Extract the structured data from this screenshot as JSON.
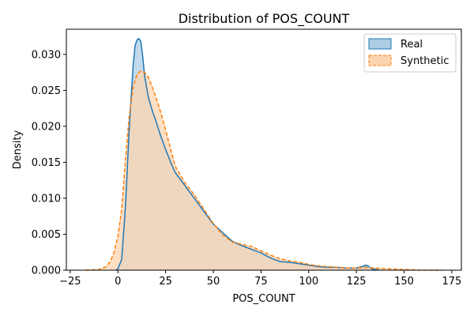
{
  "chart_data": {
    "type": "area",
    "title": "Distribution of POS_COUNT",
    "xlabel": "POS_COUNT",
    "ylabel": "Density",
    "xlim": [
      -27,
      180
    ],
    "ylim": [
      0,
      0.0335
    ],
    "xticks": [
      -25,
      0,
      25,
      50,
      75,
      100,
      125,
      150,
      175
    ],
    "xtick_labels": [
      "−25",
      "0",
      "25",
      "50",
      "75",
      "100",
      "125",
      "150",
      "175"
    ],
    "yticks": [
      0,
      0.005,
      0.01,
      0.015,
      0.02,
      0.025,
      0.03
    ],
    "ytick_labels": [
      "0.000",
      "0.005",
      "0.010",
      "0.015",
      "0.020",
      "0.025",
      "0.030"
    ],
    "grid": false,
    "legend_position": "top-right",
    "series": [
      {
        "name": "Real",
        "color": "#1f77b4",
        "fill": "#aecde4",
        "dash": "solid",
        "x": [
          -1,
          0,
          2,
          4,
          6,
          8,
          9,
          10,
          11,
          12,
          13,
          14,
          16,
          18,
          20,
          22,
          25,
          28,
          30,
          35,
          40,
          45,
          50,
          55,
          60,
          65,
          70,
          75,
          80,
          85,
          90,
          95,
          100,
          105,
          110,
          115,
          120,
          125,
          128,
          130,
          131,
          133,
          135,
          137
        ],
        "y": [
          0.0,
          0.0002,
          0.0015,
          0.009,
          0.02,
          0.0285,
          0.0312,
          0.032,
          0.0322,
          0.0318,
          0.0298,
          0.027,
          0.024,
          0.0222,
          0.0207,
          0.019,
          0.0168,
          0.0148,
          0.0136,
          0.0118,
          0.01,
          0.0082,
          0.0064,
          0.0052,
          0.004,
          0.0034,
          0.0029,
          0.0024,
          0.0017,
          0.0012,
          0.0011,
          0.0009,
          0.0007,
          0.0005,
          0.0004,
          0.0004,
          0.0003,
          0.0003,
          0.0005,
          0.0007,
          0.0006,
          0.0002,
          0.0001,
          0.0
        ]
      },
      {
        "name": "Synthetic",
        "color": "#ff7f0e",
        "fill": "#fdd4b0",
        "dash": "dashed",
        "x": [
          -17,
          -10,
          -6,
          -4,
          -2,
          0,
          2,
          4,
          6,
          8,
          10,
          12,
          14,
          16,
          18,
          20,
          23,
          26,
          30,
          35,
          40,
          45,
          50,
          55,
          60,
          65,
          70,
          75,
          80,
          85,
          90,
          95,
          100,
          105,
          110,
          115,
          120,
          125,
          130,
          135,
          140,
          150,
          160,
          170
        ],
        "y": [
          0.0,
          0.0001,
          0.0005,
          0.0012,
          0.0025,
          0.0047,
          0.0085,
          0.0155,
          0.0215,
          0.0255,
          0.0272,
          0.0277,
          0.0275,
          0.0268,
          0.0255,
          0.024,
          0.0215,
          0.0185,
          0.0145,
          0.0122,
          0.0105,
          0.0085,
          0.0065,
          0.0049,
          0.0039,
          0.0036,
          0.0033,
          0.0027,
          0.0021,
          0.0016,
          0.0013,
          0.0011,
          0.0008,
          0.0006,
          0.0005,
          0.0004,
          0.0003,
          0.0003,
          0.0004,
          0.0003,
          0.0002,
          0.0001,
          0.0,
          0.0
        ]
      }
    ]
  }
}
